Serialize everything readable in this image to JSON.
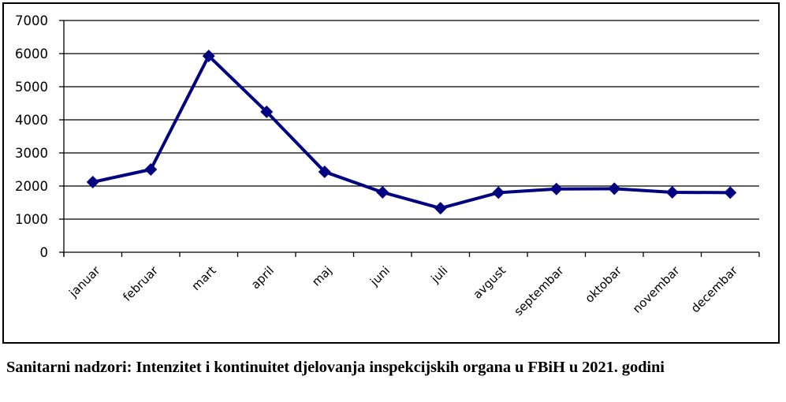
{
  "chart_data": {
    "type": "line",
    "title": "",
    "xlabel": "",
    "ylabel": "",
    "categories": [
      "januar",
      "februar",
      "mart",
      "april",
      "maj",
      "juni",
      "juli",
      "avgust",
      "septembar",
      "oktobar",
      "novembar",
      "decembar"
    ],
    "series": [
      {
        "name": "Sanitarni nadzori",
        "values": [
          2120,
          2500,
          5930,
          4240,
          2430,
          1810,
          1330,
          1800,
          1910,
          1920,
          1810,
          1800
        ],
        "color": "#000080",
        "marker": "diamond"
      }
    ],
    "ylim": [
      0,
      7000
    ],
    "yticks": [
      "0",
      "1000",
      "2000",
      "3000",
      "4000",
      "5000",
      "6000",
      "7000"
    ],
    "grid": true,
    "legend": "none"
  },
  "caption": "Sanitarni nadzori: Intenzitet i kontinuitet djelovanja inspekcijskih organa u FBiH u 2021. godini"
}
